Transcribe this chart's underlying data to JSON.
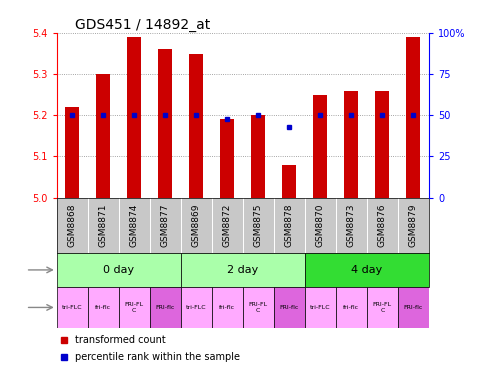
{
  "title": "GDS451 / 14892_at",
  "samples": [
    "GSM8868",
    "GSM8871",
    "GSM8874",
    "GSM8877",
    "GSM8869",
    "GSM8872",
    "GSM8875",
    "GSM8878",
    "GSM8870",
    "GSM8873",
    "GSM8876",
    "GSM8879"
  ],
  "red_values": [
    5.22,
    5.3,
    5.39,
    5.36,
    5.35,
    5.19,
    5.2,
    5.08,
    5.25,
    5.26,
    5.26,
    5.39
  ],
  "blue_percentiles": [
    50,
    50,
    50,
    50,
    50,
    48,
    50,
    43,
    50,
    50,
    50,
    50
  ],
  "ylim": [
    5.0,
    5.4
  ],
  "yticks_left": [
    5.0,
    5.1,
    5.2,
    5.3,
    5.4
  ],
  "yticks_right": [
    0,
    25,
    50,
    75,
    100
  ],
  "ytick_right_labels": [
    "0",
    "25",
    "50",
    "75",
    "100%"
  ],
  "bar_color": "#cc0000",
  "dot_color": "#0000cc",
  "grid_color": "#000080",
  "bg_color": "#ffffff",
  "xlabels_bg": "#c8c8c8",
  "time_groups": [
    {
      "label": "0 day",
      "xstart": -0.5,
      "xend": 3.5,
      "color": "#aaffaa"
    },
    {
      "label": "2 day",
      "xstart": 3.5,
      "xend": 7.5,
      "color": "#aaffaa"
    },
    {
      "label": "4 day",
      "xstart": 7.5,
      "xend": 11.5,
      "color": "#33dd33"
    }
  ],
  "strain_labels": [
    "tri-FLC",
    "fri-flc",
    "FRI-FL\nC",
    "FRI-flc",
    "tri-FLC",
    "fri-flc",
    "FRI-FL\nC",
    "FRI-flc",
    "tri-FLC",
    "fri-flc",
    "FRI-FL\nC",
    "FRI-flc"
  ],
  "strain_colors": [
    "#ffaaff",
    "#ffaaff",
    "#ffaaff",
    "#dd66dd",
    "#ffaaff",
    "#ffaaff",
    "#ffaaff",
    "#dd66dd",
    "#ffaaff",
    "#ffaaff",
    "#ffaaff",
    "#dd66dd"
  ],
  "title_fontsize": 10,
  "tick_fontsize": 7,
  "bar_width": 0.45
}
